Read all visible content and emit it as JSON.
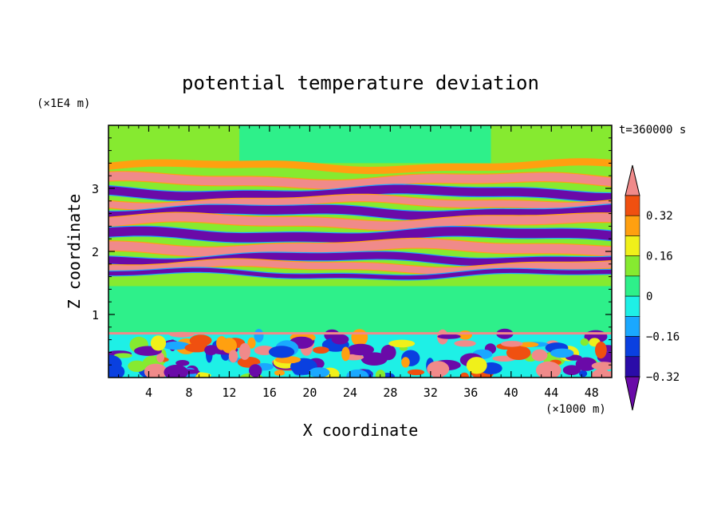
{
  "chart_data": {
    "type": "heatmap",
    "title": "potential temperature deviation",
    "time_label": "t=360000 s",
    "xlabel": "X coordinate",
    "ylabel": "Z coordinate",
    "x_unit": "(×1000 m)",
    "y_unit": "(×1E4 m)",
    "xlim": [
      0,
      50
    ],
    "ylim": [
      0,
      4
    ],
    "x_ticks": [
      "4",
      "8",
      "12",
      "16",
      "20",
      "24",
      "28",
      "32",
      "36",
      "40",
      "44",
      "48"
    ],
    "y_ticks": [
      "1",
      "2",
      "3"
    ],
    "colorbar": {
      "levels": [
        -0.4,
        -0.32,
        -0.24,
        -0.16,
        -0.08,
        0,
        0.08,
        0.16,
        0.24,
        0.32,
        0.4
      ],
      "labels": [
        "0.32",
        "0.16",
        "0",
        "−0.16",
        "−0.32"
      ],
      "colors": [
        "#6a0aa8",
        "#2a0ca8",
        "#0a40e0",
        "#1aa8ff",
        "#1ef0e6",
        "#2ef08a",
        "#86ea30",
        "#f0f01a",
        "#ffa010",
        "#f05010",
        "#f08a8a"
      ]
    },
    "bands": [
      {
        "z0": 3.3,
        "z1": 3.4,
        "value": 0.2
      },
      {
        "z0": 3.05,
        "z1": 3.2,
        "value": 0.45
      },
      {
        "z0": 2.85,
        "z1": 3.0,
        "value": -0.45
      },
      {
        "z0": 2.72,
        "z1": 2.84,
        "value": 0.45
      },
      {
        "z0": 2.55,
        "z1": 2.7,
        "value": -0.45
      },
      {
        "z0": 2.4,
        "z1": 2.55,
        "value": 0.45
      },
      {
        "z0": 2.18,
        "z1": 2.34,
        "value": -0.45
      },
      {
        "z0": 1.98,
        "z1": 2.14,
        "value": 0.45
      },
      {
        "z0": 1.82,
        "z1": 1.95,
        "value": -0.45
      },
      {
        "z0": 1.7,
        "z1": 1.82,
        "value": 0.45
      },
      {
        "z0": 1.6,
        "z1": 1.68,
        "value": -0.45
      }
    ]
  }
}
